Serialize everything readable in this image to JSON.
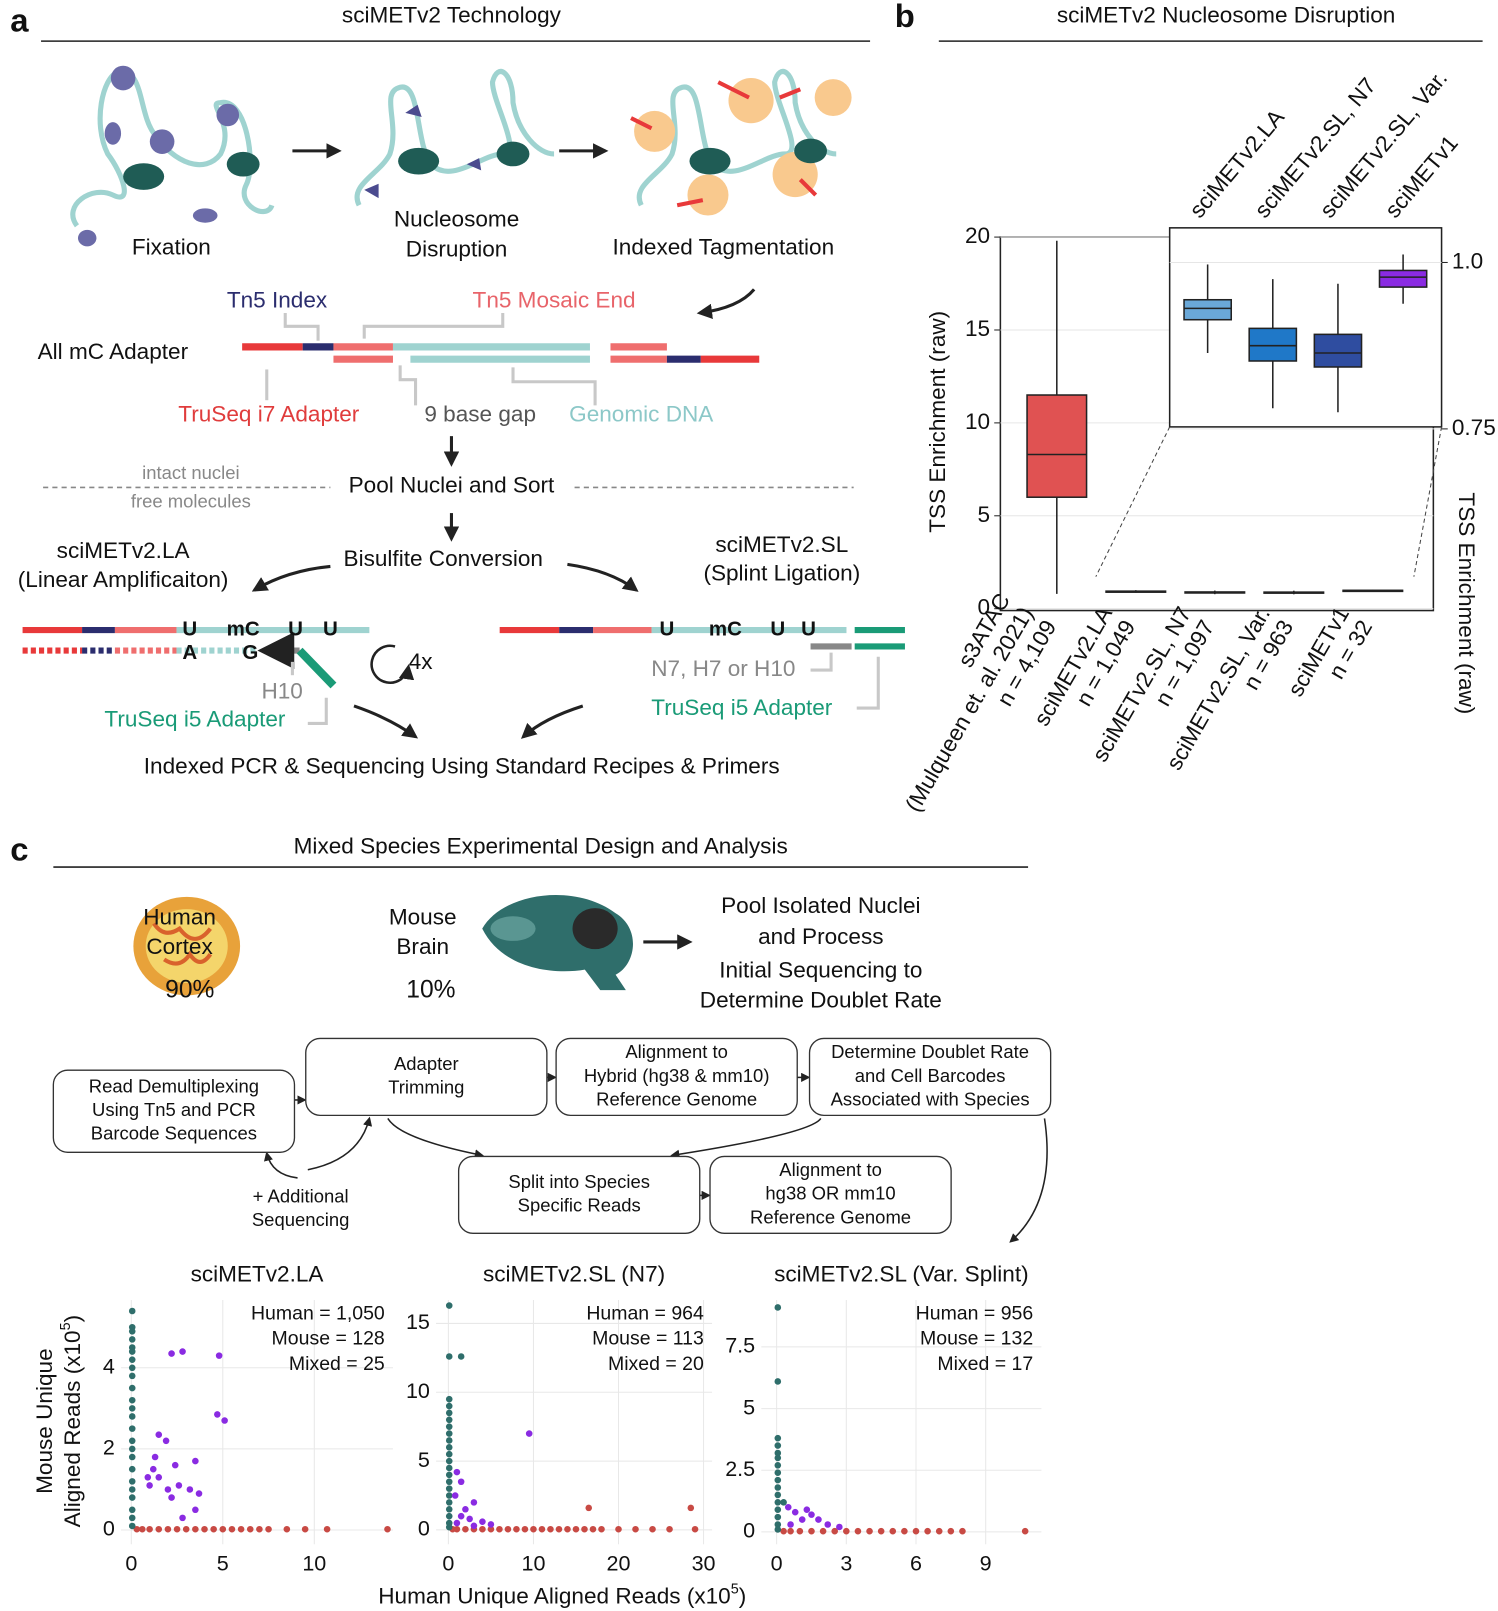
{
  "panel_a": {
    "letter": "a",
    "title": "sciMETv2 Technology",
    "fixation": "Fixation",
    "nucleosome_disruption": [
      "Nucleosome",
      "Disruption"
    ],
    "indexed_tagmentation": "Indexed Tagmentation",
    "tn5_index": "Tn5 Index",
    "tn5_mosaic_end": "Tn5 Mosaic End",
    "all_mc_adapter": "All mC Adapter",
    "truseq_i7_adapter": "TruSeq i7 Adapter",
    "base_gap": "9 base gap",
    "genomic_dna": "Genomic DNA",
    "intact_nuclei": "intact nuclei",
    "free_molecules": "free molecules",
    "pool_sort": "Pool Nuclei and Sort",
    "bisulfite": "Bisulfite Conversion",
    "la_name": [
      "sciMETv2.LA",
      "(Linear Amplificaiton)"
    ],
    "sl_name": [
      "sciMETv2.SL",
      "(Splint Ligation)"
    ],
    "la_bases": [
      "U",
      "mC",
      "U",
      "U"
    ],
    "la_complement": [
      "A",
      "G"
    ],
    "cycles": "4x",
    "h10": "H10",
    "la_i5_adapter": "TruSeq i5 Adapter",
    "sl_bases": [
      "U",
      "mC",
      "U",
      "U"
    ],
    "sl_index": "N7, H7 or H10",
    "sl_i5_adapter": "TruSeq i5 Adapter",
    "pcr": "Indexed PCR & Sequencing Using Standard Recipes & Primers"
  },
  "panel_b": {
    "letter": "b",
    "title": "sciMETv2 Nucleosome Disruption"
  },
  "panel_c": {
    "letter": "c",
    "title": "Mixed Species Experimental Design and Analysis",
    "human": [
      "Human",
      "Cortex"
    ],
    "human_share": "90%",
    "mouse": [
      "Mouse",
      "Brain"
    ],
    "mouse_share": "10%",
    "pool_process": [
      "Pool Isolated Nuclei",
      "and Process"
    ],
    "initial_sequencing": [
      "Initial Sequencing to",
      "Determine Doublet Rate"
    ],
    "flow": [
      {
        "label": [
          "Read Demultiplexing",
          "Using Tn5 and PCR",
          "Barcode Sequences"
        ]
      },
      {
        "label": [
          "Adapter",
          "Trimming"
        ]
      },
      {
        "label": [
          "Alignment to",
          "Hybrid (hg38 & mm10)",
          "Reference Genome"
        ]
      },
      {
        "label": [
          "Determine Doublet Rate",
          "and Cell Barcodes",
          "Associated with Species"
        ]
      },
      {
        "label": [
          "Split into Species",
          "Specific Reads"
        ]
      },
      {
        "label": [
          "Alignment to",
          "hg38 OR mm10",
          "Reference Genome"
        ]
      }
    ],
    "additional": [
      "+ Additional",
      "Sequencing"
    ],
    "x_label": [
      "Human Unique Aligned Reads (x10",
      "5",
      ")"
    ],
    "y_label": [
      "Mouse Unique",
      "Aligned Reads (x10",
      "5",
      ")"
    ]
  },
  "chart_data": [
    {
      "type": "box",
      "ylabel": "TSS Enrichment (raw)",
      "categories": [
        [
          "s3ATAC",
          "(Mulqueen et. al. 2021)",
          "n = 4,109"
        ],
        [
          "sciMETv2.LA",
          "n = 1,049"
        ],
        [
          "sciMETv2.SL, N7",
          "n = 1,097"
        ],
        [
          "sciMETv2.SL, Var.",
          "n = 963"
        ],
        [
          "sciMETv1",
          "n = 32"
        ]
      ],
      "values": [
        {
          "whislo": 0.8,
          "q1": 6.0,
          "median": 8.3,
          "q3": 11.5,
          "whishi": 19.8
        },
        {
          "whislo": 0.864,
          "q1": 0.914,
          "median": 0.931,
          "q3": 0.944,
          "whishi": 0.997
        },
        {
          "whislo": 0.781,
          "q1": 0.852,
          "median": 0.875,
          "q3": 0.901,
          "whishi": 0.975
        },
        {
          "whislo": 0.775,
          "q1": 0.843,
          "median": 0.864,
          "q3": 0.892,
          "whishi": 0.968
        },
        {
          "whislo": 0.938,
          "q1": 0.963,
          "median": 0.978,
          "q3": 0.988,
          "whishi": 1.012
        }
      ],
      "colors": [
        "#e05252",
        "#6aa8d8",
        "#1f78c8",
        "#2f4da0",
        "#8a2be2"
      ],
      "ylim": [
        -0.1,
        20.0
      ],
      "yticks": [
        0,
        5,
        10,
        15,
        20
      ],
      "grid": true
    },
    {
      "type": "box",
      "ylabel": "TSS Enrichment (raw)",
      "axis_side": "right",
      "categories": [
        "sciMETv2.LA",
        "sciMETv2.SL, N7",
        "sciMETv2.SL, Var.",
        "sciMETv1"
      ],
      "values": [
        {
          "whislo": 0.864,
          "q1": 0.914,
          "median": 0.931,
          "q3": 0.944,
          "whishi": 0.997
        },
        {
          "whislo": 0.781,
          "q1": 0.852,
          "median": 0.875,
          "q3": 0.901,
          "whishi": 0.975
        },
        {
          "whislo": 0.775,
          "q1": 0.843,
          "median": 0.864,
          "q3": 0.892,
          "whishi": 0.968
        },
        {
          "whislo": 0.938,
          "q1": 0.963,
          "median": 0.978,
          "q3": 0.988,
          "whishi": 1.012
        }
      ],
      "colors": [
        "#6aa8d8",
        "#1f78c8",
        "#2f4da0",
        "#8a2be2"
      ],
      "ylim": [
        0.753,
        1.052
      ],
      "yticks": [
        {
          "value": 1.0,
          "label": "1.0"
        },
        0.75
      ],
      "grid": true
    },
    {
      "type": "scatter",
      "title": "sciMETv2.LA",
      "annotations": [
        "Human = 1,050",
        "Mouse = 128",
        "Mixed = 25"
      ],
      "xlim": [
        -0.56,
        14.3
      ],
      "ylim": [
        -0.35,
        5.67
      ],
      "xticks": [
        0,
        5,
        10
      ],
      "yticks": [
        0,
        2,
        4
      ],
      "grid": true,
      "series": [
        {
          "color": "#c84a44",
          "x": [
            0.3,
            0.6,
            1.0,
            1.5,
            2.0,
            2.5,
            3.0,
            3.5,
            4.0,
            4.5,
            5.0,
            5.5,
            6.0,
            6.5,
            7.0,
            7.5,
            8.5,
            9.5,
            10.7,
            14.0
          ],
          "values": [
            0.02,
            0.02,
            0.02,
            0.02,
            0.02,
            0.02,
            0.02,
            0.02,
            0.02,
            0.02,
            0.02,
            0.02,
            0.02,
            0.02,
            0.02,
            0.02,
            0.02,
            0.02,
            0.02,
            0.02
          ]
        },
        {
          "color": "#2f6e6b",
          "x": [
            0.05,
            0.05,
            0.05,
            0.05,
            0.05,
            0.05,
            0.05,
            0.05,
            0.05,
            0.05,
            0.05,
            0.05,
            0.05,
            0.05,
            0.05,
            0.05,
            0.05,
            0.05,
            0.05,
            0.05,
            0.05,
            0.05,
            0.05,
            0.05
          ],
          "values": [
            5.4,
            5.0,
            4.9,
            4.7,
            4.5,
            4.4,
            4.2,
            4.0,
            3.8,
            3.5,
            3.2,
            3.0,
            2.8,
            2.5,
            2.2,
            2.0,
            1.8,
            1.5,
            1.2,
            1.0,
            0.8,
            0.5,
            0.3,
            0.1
          ]
        },
        {
          "color": "#8a2be2",
          "x": [
            2.2,
            2.8,
            4.8,
            4.7,
            5.1,
            1.5,
            1.9,
            0.9,
            1.2,
            1.5,
            2.4,
            3.5,
            1.0,
            2.0,
            2.6,
            3.2,
            2.2,
            3.7,
            3.5,
            1.3,
            2.8
          ],
          "values": [
            4.35,
            4.4,
            4.3,
            2.85,
            2.7,
            2.35,
            2.2,
            1.3,
            1.5,
            1.3,
            1.6,
            1.7,
            1.1,
            1.0,
            1.1,
            1.0,
            0.8,
            0.9,
            0.5,
            1.8,
            0.3
          ]
        }
      ]
    },
    {
      "type": "scatter",
      "title": "sciMETv2.SL (N7)",
      "annotations": [
        "Human = 964",
        "Mouse = 113",
        "Mixed = 20"
      ],
      "xlim": [
        -1.45,
        31.0
      ],
      "ylim": [
        -1.04,
        16.7
      ],
      "xticks": [
        0,
        10,
        20,
        30
      ],
      "yticks": [
        0,
        5,
        10,
        15
      ],
      "grid": true,
      "series": [
        {
          "color": "#c84a44",
          "x": [
            0.5,
            1,
            2,
            3,
            4,
            5,
            6,
            7,
            8,
            9,
            10,
            11,
            12,
            13,
            14,
            15,
            16,
            17,
            18,
            20,
            22,
            24,
            26,
            29,
            16.5,
            28.5
          ],
          "values": [
            0.05,
            0.05,
            0.05,
            0.05,
            0.05,
            0.05,
            0.05,
            0.05,
            0.05,
            0.05,
            0.05,
            0.05,
            0.05,
            0.05,
            0.05,
            0.05,
            0.05,
            0.05,
            0.05,
            0.05,
            0.05,
            0.05,
            0.05,
            0.05,
            1.6,
            1.6
          ]
        },
        {
          "color": "#2f6e6b",
          "x": [
            0.1,
            0.1,
            0.1,
            0.1,
            0.1,
            0.1,
            0.1,
            0.1,
            0.1,
            0.1,
            0.1,
            0.1,
            0.1,
            0.1,
            0.1,
            0.1,
            0.1,
            0.1,
            0.1,
            0.1,
            0.1,
            0.1,
            1.5
          ],
          "values": [
            16.3,
            12.6,
            9.5,
            9.0,
            8.5,
            8.0,
            7.5,
            7.0,
            6.5,
            6.0,
            5.5,
            5.0,
            4.5,
            4.0,
            3.5,
            3.0,
            2.5,
            2.0,
            1.5,
            1.0,
            0.5,
            0.2,
            12.6
          ]
        },
        {
          "color": "#8a2be2",
          "x": [
            9.5,
            1.0,
            1.5,
            0.8,
            3.0,
            2.0,
            1.5,
            2.5,
            4.0,
            5.0,
            1.0,
            3.0
          ],
          "values": [
            7.0,
            4.2,
            3.5,
            2.5,
            2.0,
            1.5,
            1.0,
            0.8,
            0.6,
            0.4,
            0.5,
            0.3
          ]
        }
      ]
    },
    {
      "type": "scatter",
      "title": "sciMETv2.SL (Var. Splint)",
      "annotations": [
        "Human = 956",
        "Mouse = 132",
        "Mixed = 17"
      ],
      "xlim": [
        -0.66,
        11.4
      ],
      "ylim": [
        -0.5,
        9.4
      ],
      "xticks": [
        0,
        3,
        6,
        9
      ],
      "yticks": [
        0,
        2.5,
        5,
        7.5
      ],
      "grid": true,
      "series": [
        {
          "color": "#c84a44",
          "x": [
            0.3,
            0.6,
            1,
            1.5,
            2,
            2.5,
            3,
            3.5,
            4,
            4.5,
            5,
            5.5,
            6,
            6.5,
            7,
            7.5,
            8,
            10.7
          ],
          "values": [
            0.03,
            0.03,
            0.03,
            0.03,
            0.03,
            0.03,
            0.03,
            0.03,
            0.03,
            0.03,
            0.03,
            0.03,
            0.03,
            0.03,
            0.03,
            0.03,
            0.03,
            0.03
          ]
        },
        {
          "color": "#2f6e6b",
          "x": [
            0.05,
            0.05,
            0.05,
            0.05,
            0.05,
            0.05,
            0.05,
            0.05,
            0.05,
            0.05,
            0.05,
            0.05,
            0.05,
            0.05,
            0.05,
            0.05,
            0.3
          ],
          "values": [
            9.1,
            6.1,
            3.8,
            3.5,
            3.2,
            3.0,
            2.7,
            2.4,
            2.1,
            1.8,
            1.5,
            1.2,
            0.9,
            0.6,
            0.3,
            0.1,
            1.2
          ]
        },
        {
          "color": "#8a2be2",
          "x": [
            0.5,
            0.8,
            1.3,
            1.5,
            1.8,
            1.1,
            2.2,
            2.7,
            0.6
          ],
          "values": [
            1.0,
            0.8,
            0.9,
            0.7,
            0.5,
            0.5,
            0.3,
            0.2,
            0.3
          ]
        }
      ]
    }
  ]
}
